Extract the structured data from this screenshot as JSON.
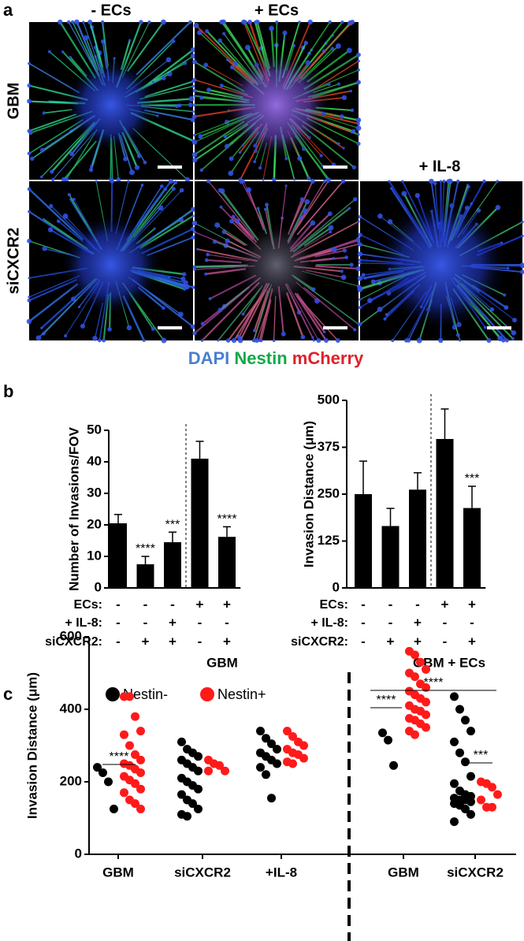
{
  "panel_a": {
    "label": "a",
    "columns": [
      "- ECs",
      "+ ECs",
      "+ IL-8"
    ],
    "rows": [
      "GBM",
      "siCXCR2"
    ],
    "stain_legend": [
      {
        "name": "DAPI",
        "color": "#4a7fd0"
      },
      {
        "name": "Nestin",
        "color": "#12a84a"
      },
      {
        "name": "mCherry",
        "color": "#e0202a"
      }
    ]
  },
  "panel_b_label": "b",
  "panel_c_label": "c",
  "chart_data": [
    {
      "type": "bar",
      "ylabel": "Number of Invasions/FOV",
      "categories": [
        null,
        null,
        null,
        null,
        null
      ],
      "values": [
        20.5,
        7.5,
        14.5,
        41,
        16.2
      ],
      "errors": [
        2.8,
        2.5,
        3.2,
        5.5,
        3.2
      ],
      "color": "#000000",
      "ylim": [
        0,
        50
      ],
      "yticks": [
        0,
        10,
        20,
        30,
        40,
        50
      ],
      "significance": [
        null,
        "****",
        "***",
        null,
        "****"
      ],
      "conditions": [
        {
          "label": "ECs:",
          "values": [
            "-",
            "-",
            "-",
            "+",
            "+"
          ]
        },
        {
          "label": "+ IL-8:",
          "values": [
            "-",
            "-",
            "+",
            "-",
            "-"
          ]
        },
        {
          "label": "siCXCR2:",
          "values": [
            "-",
            "+",
            "+",
            "-",
            "+"
          ]
        }
      ]
    },
    {
      "type": "bar",
      "ylabel": "Invasion Distance (μm)",
      "categories": [
        null,
        null,
        null,
        null,
        null
      ],
      "values": [
        250,
        165,
        262,
        397,
        213
      ],
      "errors": [
        88,
        47,
        45,
        80,
        58
      ],
      "color": "#000000",
      "ylim": [
        0,
        500
      ],
      "yticks": [
        0,
        125,
        250,
        375,
        500
      ],
      "significance": [
        null,
        null,
        null,
        null,
        "***"
      ],
      "conditions": [
        {
          "label": "ECs:",
          "values": [
            "-",
            "-",
            "-",
            "+",
            "+"
          ]
        },
        {
          "label": "+ IL-8:",
          "values": [
            "-",
            "-",
            "+",
            "-",
            "-"
          ]
        },
        {
          "label": "siCXCR2:",
          "values": [
            "-",
            "+",
            "+",
            "-",
            "+"
          ]
        }
      ]
    },
    {
      "type": "dot",
      "ylabel": "Invasion Distance (μm)",
      "group_titles": [
        "GBM",
        "GBM + ECs"
      ],
      "categories": [
        "GBM",
        "siCXCR2",
        "+IL-8",
        "GBM",
        "siCXCR2"
      ],
      "ylim": [
        0,
        600
      ],
      "yticks": [
        0,
        200,
        400,
        600
      ],
      "series": [
        {
          "name": "Nestin-",
          "color": "#000000",
          "values": [
            [
              240,
              225,
              200,
              125
            ],
            [
              310,
              290,
              280,
              270,
              260,
              250,
              240,
              230,
              210,
              200,
              190,
              180,
              165,
              150,
              140,
              125,
              110,
              105
            ],
            [
              340,
              320,
              305,
              290,
              280,
              270,
              260,
              250,
              240,
              220,
              155
            ],
            [
              335,
              315,
              245
            ],
            [
              435,
              400,
              370,
              340,
              310,
              280,
              255,
              215,
              195,
              175,
              165,
              160,
              155,
              150,
              150,
              145,
              140,
              135,
              125,
              110,
              90
            ]
          ]
        },
        {
          "name": "Nestin+",
          "color": "#ff1a1a",
          "values": [
            [
              435,
              435,
              380,
              340,
              330,
              300,
              275,
              260,
              250,
              245,
              235,
              225,
              215,
              205,
              195,
              180,
              170,
              150,
              140,
              125
            ],
            [
              260,
              250,
              245,
              230,
              230
            ],
            [
              340,
              325,
              310,
              300,
              290,
              280,
              275,
              265,
              255,
              250
            ],
            [
              560,
              550,
              530,
              510,
              500,
              490,
              470,
              460,
              450,
              440,
              430,
              420,
              410,
              400,
              395,
              385,
              375,
              370,
              360,
              350,
              340,
              330
            ],
            [
              200,
              195,
              185,
              165,
              150,
              130,
              130
            ]
          ]
        }
      ],
      "annotations": [
        "****",
        "****",
        "***",
        "****"
      ]
    }
  ]
}
